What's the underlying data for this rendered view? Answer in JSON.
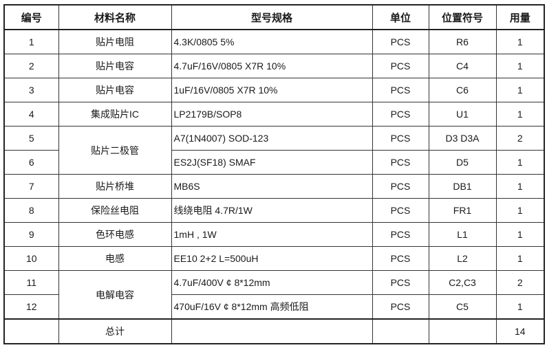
{
  "headers": [
    "编号",
    "材料名称",
    "型号规格",
    "单位",
    "位置符号",
    "用量"
  ],
  "rows": [
    {
      "no": "1",
      "name": "贴片电阻",
      "spec": "4.3K/0805    5%",
      "unit": "PCS",
      "ref": "R6",
      "qty": "1"
    },
    {
      "no": "2",
      "name": "贴片电容",
      "spec": "4.7uF/16V/0805  X7R 10%",
      "unit": "PCS",
      "ref": "C4",
      "qty": "1"
    },
    {
      "no": "3",
      "name": "贴片电容",
      "spec": "1uF/16V/0805  X7R 10%",
      "unit": "PCS",
      "ref": "C6",
      "qty": "1"
    },
    {
      "no": "4",
      "name": "集成贴片IC",
      "spec": "LP2179B/SOP8",
      "unit": "PCS",
      "ref": "U1",
      "qty": "1"
    },
    {
      "no": "5",
      "name": "贴片二极管",
      "spec": "A7(1N4007) SOD-123",
      "unit": "PCS",
      "ref": "D3 D3A",
      "qty": "2"
    },
    {
      "no": "6",
      "name": "",
      "spec": "ES2J(SF18) SMAF",
      "unit": "PCS",
      "ref": "D5",
      "qty": "1"
    },
    {
      "no": "7",
      "name": "贴片桥堆",
      "spec": "MB6S",
      "unit": "PCS",
      "ref": "DB1",
      "qty": "1"
    },
    {
      "no": "8",
      "name": "保险丝电阻",
      "spec": "线绕电阻 4.7R/1W",
      "unit": "PCS",
      "ref": "FR1",
      "qty": "1"
    },
    {
      "no": "9",
      "name": "色环电感",
      "spec": "1mH , 1W",
      "unit": "PCS",
      "ref": "L1",
      "qty": "1"
    },
    {
      "no": "10",
      "name": "电感",
      "spec": "EE10 2+2  L=500uH",
      "unit": "PCS",
      "ref": "L2",
      "qty": "1"
    },
    {
      "no": "11",
      "name": "电解电容",
      "spec": "4.7uF/400V  ¢ 8*12mm",
      "unit": "PCS",
      "ref": "C2,C3",
      "qty": "2"
    },
    {
      "no": "12",
      "name": "",
      "spec": "470uF/16V  ¢ 8*12mm 高频低阻",
      "unit": "PCS",
      "ref": "C5",
      "qty": "1"
    }
  ],
  "total": {
    "label": "总计",
    "qty": "14"
  }
}
